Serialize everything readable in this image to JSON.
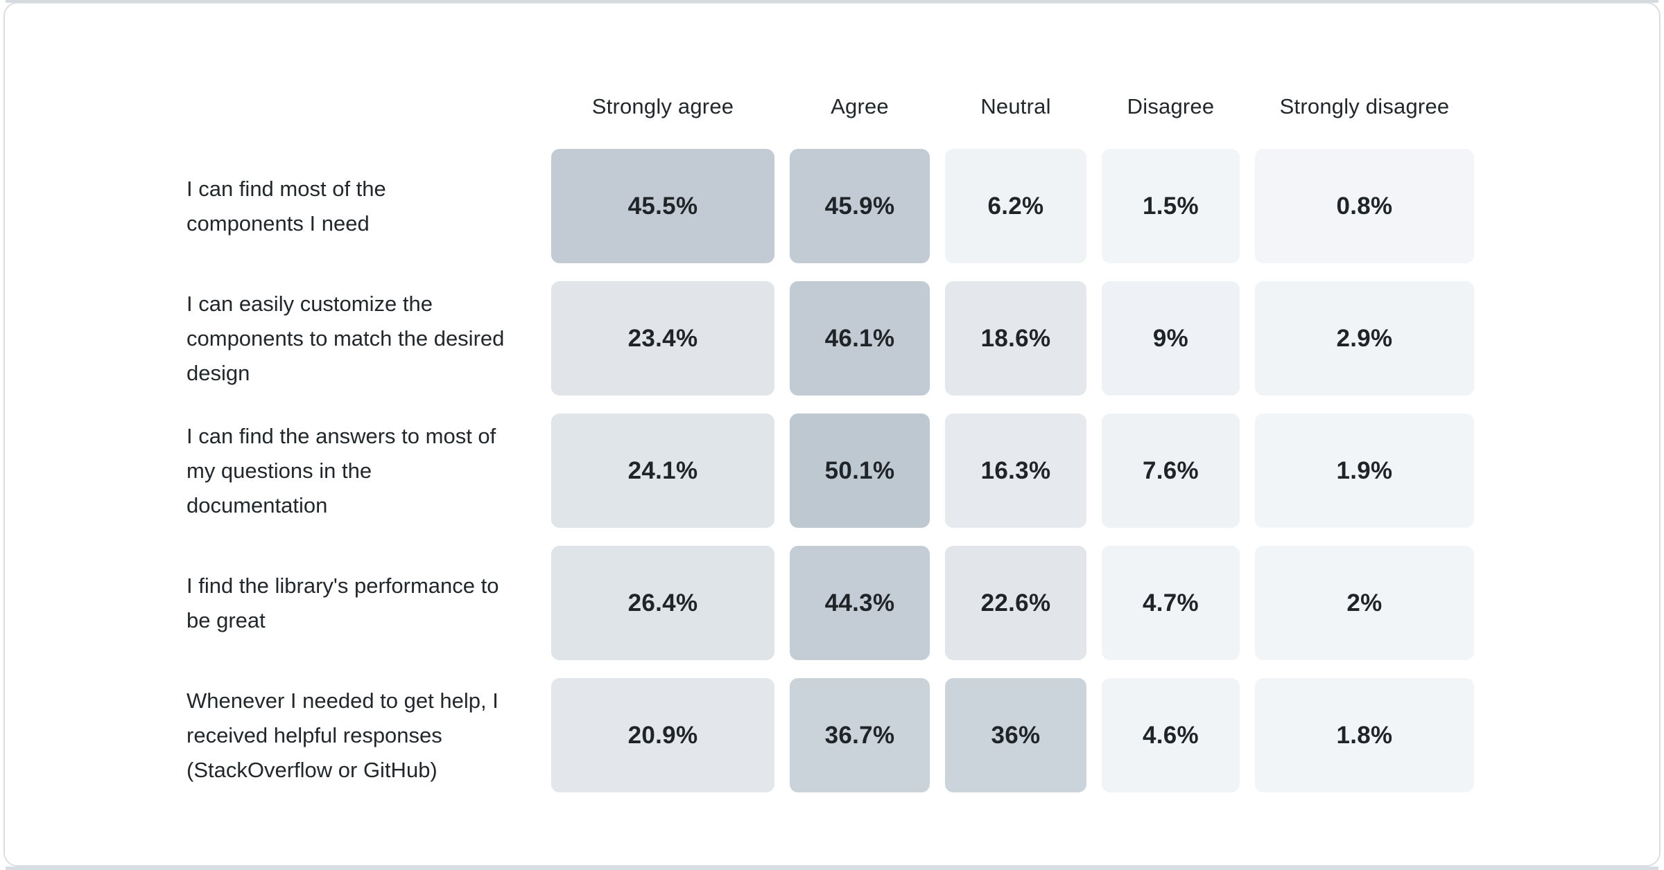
{
  "theme": {
    "page_background": "#ffffff",
    "card_background": "#ffffff",
    "card_border": "#d9dee3",
    "edge_strip_top": "#d5dade",
    "edge_strip_bottom": "#d8dde2",
    "header_text": "#21272a",
    "label_text": "#21272a",
    "value_text": "#1f2429"
  },
  "chart_data": {
    "type": "heatmap",
    "title": "",
    "columns": [
      "Strongly agree",
      "Agree",
      "Neutral",
      "Disagree",
      "Strongly disagree"
    ],
    "rows": [
      {
        "label": "I can find most of the components I need",
        "display": [
          "45.5%",
          "45.9%",
          "6.2%",
          "1.5%",
          "0.8%"
        ],
        "values": [
          45.5,
          45.9,
          6.2,
          1.5,
          0.8
        ],
        "colors": [
          "#c2cbd3",
          "#c2cbd3",
          "#f0f3f6",
          "#f2f5f8",
          "#f3f5f8"
        ]
      },
      {
        "label": "I can easily customize the components to match the desired design",
        "display": [
          "23.4%",
          "46.1%",
          "18.6%",
          "9%",
          "2.9%"
        ],
        "values": [
          23.4,
          46.1,
          18.6,
          9,
          2.9
        ],
        "colors": [
          "#e1e5ea",
          "#c2cbd3",
          "#e4e8ec",
          "#eef1f5",
          "#f1f4f7"
        ]
      },
      {
        "label": "I can find the answers to most of my questions in the documentation",
        "display": [
          "24.1%",
          "50.1%",
          "16.3%",
          "7.6%",
          "1.9%"
        ],
        "values": [
          24.1,
          50.1,
          16.3,
          7.6,
          1.9
        ],
        "colors": [
          "#e0e5e9",
          "#bec8d1",
          "#e6eaee",
          "#eff2f5",
          "#f2f5f8"
        ]
      },
      {
        "label": "I find the library's performance to be great",
        "display": [
          "26.4%",
          "44.3%",
          "22.6%",
          "4.7%",
          "2%"
        ],
        "values": [
          26.4,
          44.3,
          22.6,
          4.7,
          2
        ],
        "colors": [
          "#dfe4e8",
          "#c4cdd5",
          "#e2e6ea",
          "#f1f4f7",
          "#f2f5f8"
        ]
      },
      {
        "label": "Whenever I needed to get help, I received helpful responses (StackOverflow or GitHub)",
        "display": [
          "20.9%",
          "36.7%",
          "36%",
          "4.6%",
          "1.8%"
        ],
        "values": [
          20.9,
          36.7,
          36,
          4.6,
          1.8
        ],
        "colors": [
          "#e3e7eb",
          "#cbd3da",
          "#ccd4db",
          "#f1f4f7",
          "#f2f5f8"
        ]
      }
    ],
    "legend": "none",
    "grid": "off",
    "color_scale": {
      "low": "#f3f6f8",
      "high": "#bec8d1",
      "encodes": "percentage value"
    }
  }
}
